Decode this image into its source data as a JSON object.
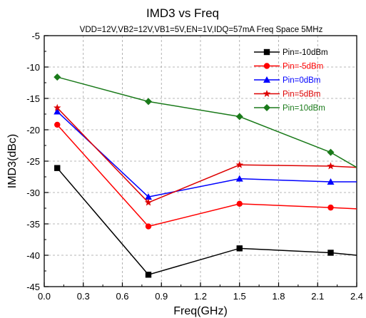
{
  "chart_data": {
    "type": "line",
    "title": "IMD3 vs Freq",
    "subtitle": "VDD=12V,VB2=12V,VB1=5V,EN=1V,IDQ=57mA Freq Space 5MHz",
    "xlabel": "Freq(GHz)",
    "ylabel": "IMD3(dBc)",
    "xlim": [
      0.0,
      2.4
    ],
    "ylim": [
      -45,
      -5
    ],
    "xticks": [
      "0.0",
      "0.3",
      "0.6",
      "0.9",
      "1.2",
      "1.5",
      "1.8",
      "2.1",
      "2.4"
    ],
    "yticks": [
      "-5",
      "-10",
      "-15",
      "-20",
      "-25",
      "-30",
      "-35",
      "-40",
      "-45"
    ],
    "grid": true,
    "legend_position": "top-right",
    "x": [
      0.1,
      0.8,
      1.5,
      2.2,
      2.4
    ],
    "series": [
      {
        "name": "Pin=-10dBm",
        "color": "#000000",
        "marker": "square",
        "values": [
          -26.1,
          -43.1,
          -38.9,
          -39.6,
          -40.0
        ]
      },
      {
        "name": "Pin=-5dBm",
        "color": "#ff0000",
        "marker": "circle",
        "values": [
          -19.2,
          -35.4,
          -31.8,
          -32.4,
          -32.6
        ]
      },
      {
        "name": "Pin=0dBm",
        "color": "#0000ff",
        "marker": "triangle",
        "values": [
          -17.1,
          -30.7,
          -27.8,
          -28.3,
          -28.3
        ]
      },
      {
        "name": "Pin=5dBm",
        "color": "#dd0000",
        "marker": "star",
        "values": [
          -16.5,
          -31.6,
          -25.6,
          -25.8,
          -26.0
        ]
      },
      {
        "name": "Pin=10dBm",
        "color": "#1a7a1a",
        "marker": "diamond",
        "values": [
          -11.6,
          -15.5,
          -17.9,
          -23.6,
          -26.0
        ]
      }
    ]
  }
}
